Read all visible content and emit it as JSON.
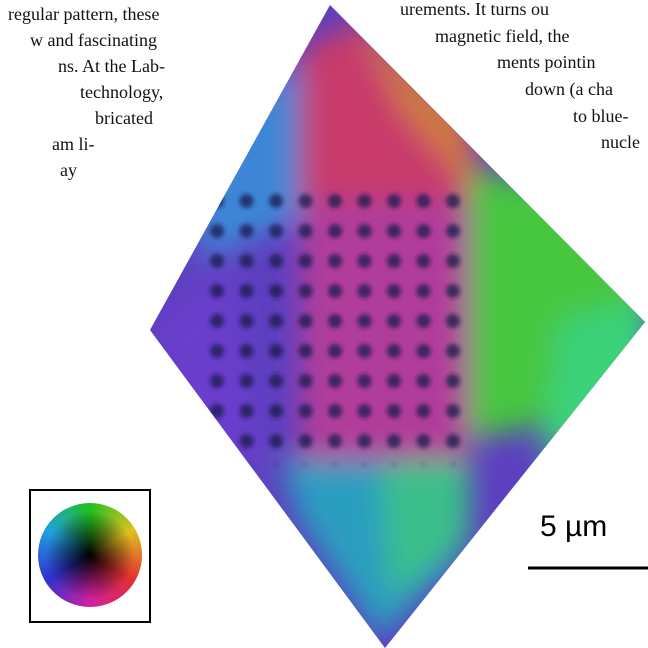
{
  "left_column": {
    "lines": [
      "regular pattern, these",
      "w and fascinating",
      "ns. At the Lab-",
      "technology,",
      "bricated",
      "am li-",
      "ay"
    ]
  },
  "right_column": {
    "lines": [
      "urements. It turns ou",
      "magnetic field, the",
      "ments  pointin",
      "down (a cha",
      "to  blue-",
      "nucle"
    ]
  },
  "scale_bar": {
    "label": "5 µm"
  }
}
